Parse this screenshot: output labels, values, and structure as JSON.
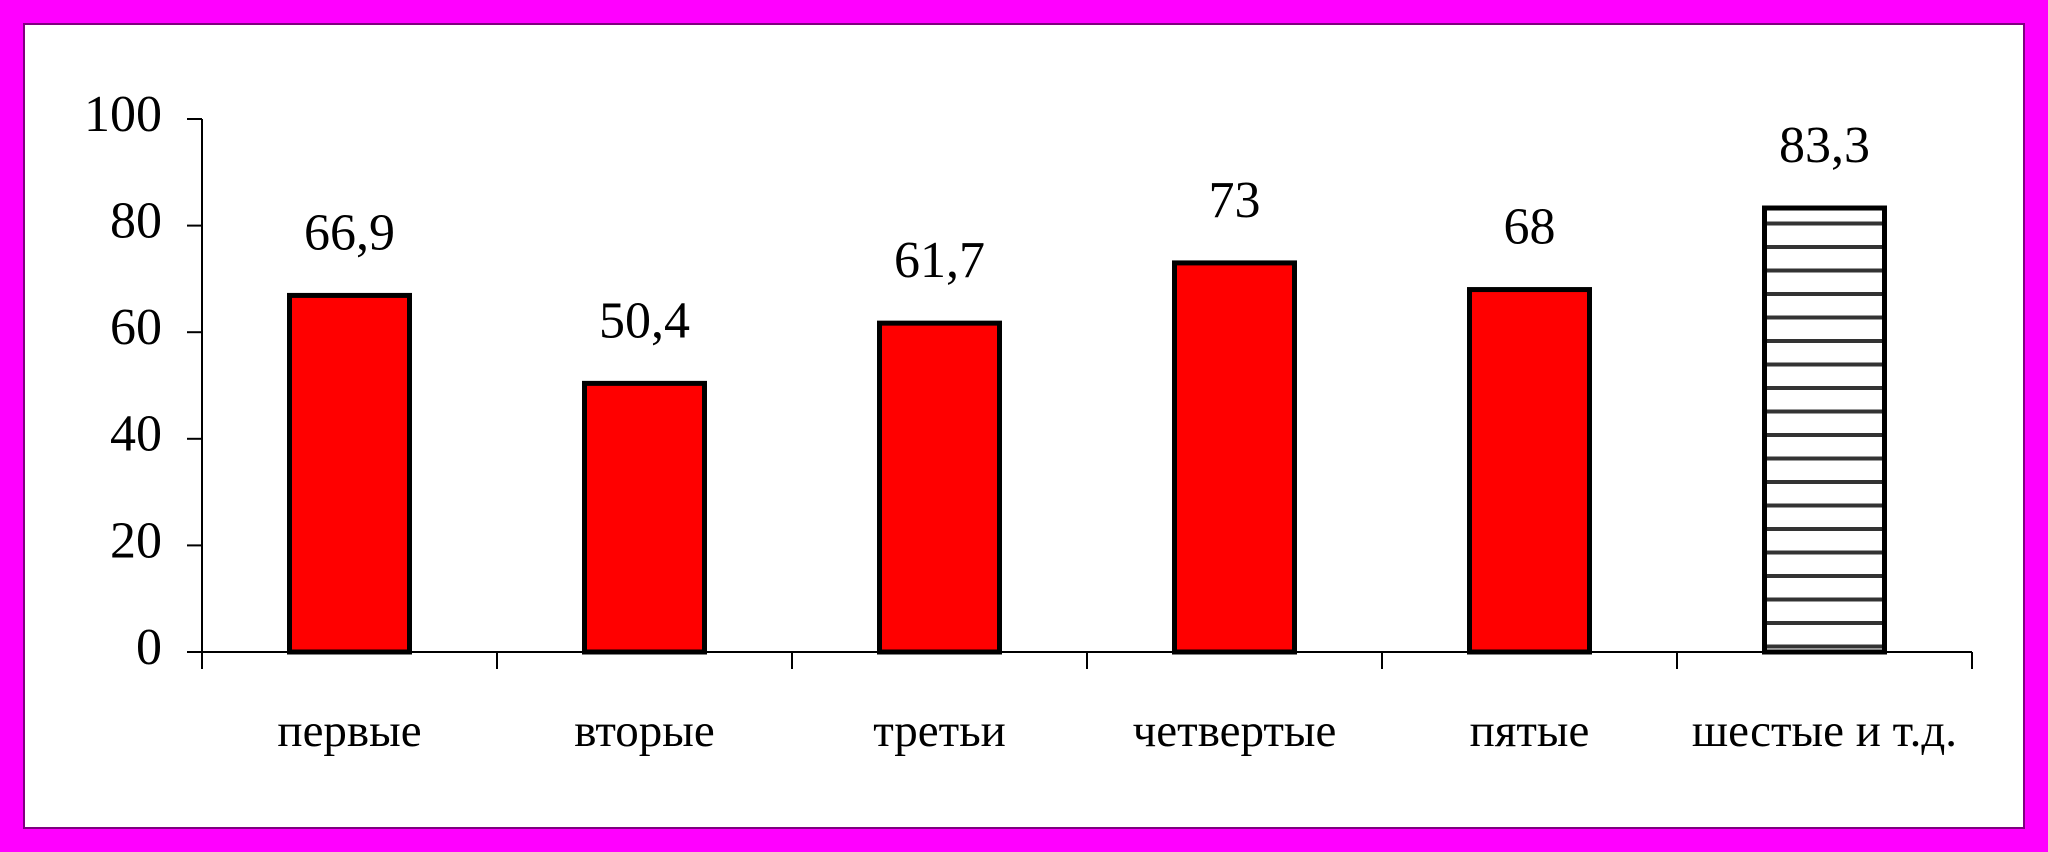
{
  "chart_data": {
    "type": "bar",
    "categories": [
      "первые",
      "вторые",
      "третьи",
      "четвертые",
      "пятые",
      "шестые и т.д."
    ],
    "values": [
      66.9,
      50.4,
      61.7,
      73,
      68,
      83.3
    ],
    "value_labels": [
      "66,9",
      "50,4",
      "61,7",
      "73",
      "68",
      "83,3"
    ],
    "colors": [
      "#ff0000",
      "#ff0000",
      "#ff0000",
      "#ff0000",
      "#ff0000",
      "#ffffff"
    ],
    "hatch": [
      false,
      false,
      false,
      false,
      false,
      true
    ],
    "ylim": [
      0,
      100
    ],
    "yticks": [
      0,
      20,
      40,
      60,
      80,
      100
    ],
    "grid": false
  }
}
